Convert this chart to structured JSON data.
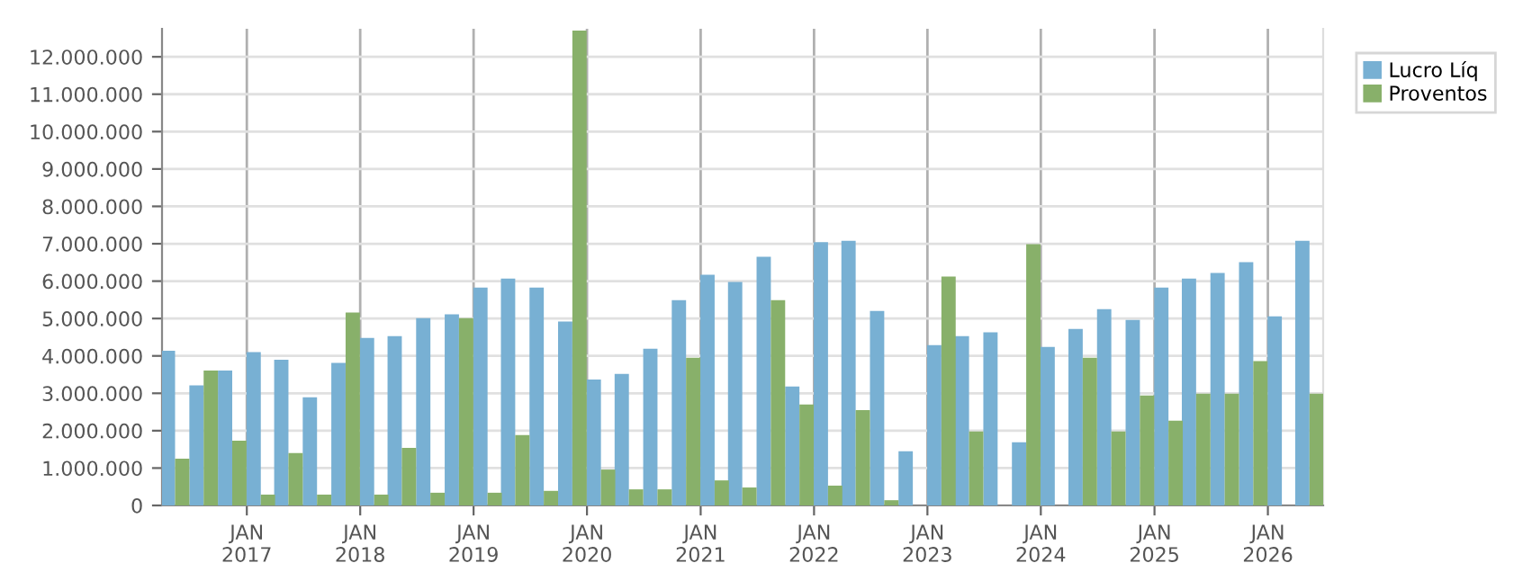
{
  "chart_data": {
    "type": "bar",
    "x": [
      "2016-05-15",
      "2016-08-15",
      "2016-11-15",
      "2017-02-15",
      "2017-05-15",
      "2017-08-15",
      "2017-11-15",
      "2018-02-15",
      "2018-05-15",
      "2018-08-15",
      "2018-11-15",
      "2019-02-15",
      "2019-05-15",
      "2019-08-15",
      "2019-11-15",
      "2020-02-15",
      "2020-05-15",
      "2020-08-15",
      "2020-11-15",
      "2021-02-15",
      "2021-05-15",
      "2021-08-15",
      "2021-11-15",
      "2022-02-15",
      "2022-05-15",
      "2022-08-15",
      "2022-11-15",
      "2023-02-15",
      "2023-05-15",
      "2023-08-15",
      "2023-11-15",
      "2024-02-15",
      "2024-05-15",
      "2024-08-15",
      "2024-11-15",
      "2025-02-15",
      "2025-05-15",
      "2025-08-15",
      "2025-11-15",
      "2026-02-15",
      "2026-05-15"
    ],
    "series": [
      {
        "name": "Lucro Líq",
        "color": "#78b0d3",
        "values": [
          4140000,
          3210000,
          3610000,
          4100000,
          3900000,
          2890000,
          3810000,
          4480000,
          4530000,
          5010000,
          5110000,
          5830000,
          6070000,
          5830000,
          4920000,
          3370000,
          3520000,
          4190000,
          5490000,
          6170000,
          5980000,
          6650000,
          3180000,
          7040000,
          7080000,
          5200000,
          1450000,
          4290000,
          4530000,
          4630000,
          1690000,
          4240000,
          4720000,
          5250000,
          4960000,
          5830000,
          6070000,
          6220000,
          6510000,
          5060000,
          7080000
        ]
      },
      {
        "name": "Proventos",
        "color": "#88b06a",
        "values": [
          1250000,
          3610000,
          1730000,
          290000,
          1400000,
          290000,
          5160000,
          290000,
          1540000,
          340000,
          5010000,
          340000,
          1880000,
          390000,
          12700000,
          960000,
          430000,
          430000,
          3950000,
          670000,
          480000,
          5490000,
          2700000,
          530000,
          2550000,
          140000,
          null,
          6120000,
          1980000,
          null,
          6990000,
          null,
          3950000,
          1980000,
          2940000,
          2270000,
          2990000,
          2990000,
          3860000,
          null,
          2990000
        ]
      }
    ],
    "xlim": [
      "2016-04-03",
      "2026-06-28"
    ],
    "xticks": [
      {
        "value": "2017-01-01",
        "label": "JAN\n2017"
      },
      {
        "value": "2018-01-01",
        "label": "JAN\n2018"
      },
      {
        "value": "2019-01-01",
        "label": "JAN\n2019"
      },
      {
        "value": "2020-01-01",
        "label": "JAN\n2020"
      },
      {
        "value": "2021-01-01",
        "label": "JAN\n2021"
      },
      {
        "value": "2022-01-01",
        "label": "JAN\n2022"
      },
      {
        "value": "2023-01-01",
        "label": "JAN\n2023"
      },
      {
        "value": "2024-01-01",
        "label": "JAN\n2024"
      },
      {
        "value": "2025-01-01",
        "label": "JAN\n2025"
      },
      {
        "value": "2026-01-01",
        "label": "JAN\n2026"
      }
    ],
    "ylim": [
      0,
      12750000
    ],
    "yticks": [
      0,
      {
        "value": 1000000,
        "label": "1.000.000"
      },
      {
        "value": 2000000,
        "label": "2.000.000"
      },
      {
        "value": 3000000,
        "label": "3.000.000"
      },
      {
        "value": 4000000,
        "label": "4.000.000"
      },
      {
        "value": 5000000,
        "label": "5.000.000"
      },
      {
        "value": 6000000,
        "label": "6.000.000"
      },
      {
        "value": 7000000,
        "label": "7.000.000"
      },
      {
        "value": 8000000,
        "label": "8.000.000"
      },
      {
        "value": 9000000,
        "label": "9.000.000"
      },
      {
        "value": 10000000,
        "label": "10.000.000"
      },
      {
        "value": 11000000,
        "label": "11.000.000"
      },
      {
        "value": 12000000,
        "label": "12.000.000"
      }
    ],
    "grid": true,
    "legend": "top right"
  }
}
